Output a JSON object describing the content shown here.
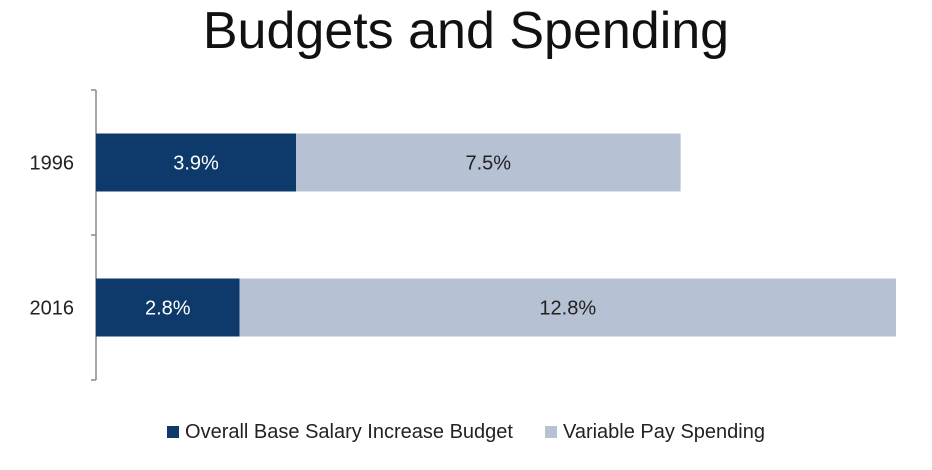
{
  "chart_data": {
    "type": "bar",
    "orientation": "horizontal",
    "stacked": true,
    "title": "Budgets and Spending",
    "categories": [
      "1996",
      "2016"
    ],
    "series": [
      {
        "name": "Overall Base Salary Increase Budget",
        "values": [
          3.9,
          2.8
        ],
        "labels": [
          "3.9%",
          "2.8%"
        ],
        "color": "#0e3a6b",
        "label_color": "#ffffff"
      },
      {
        "name": "Variable Pay Spending",
        "values": [
          7.5,
          12.8
        ],
        "labels": [
          "7.5%",
          "12.8%"
        ],
        "color": "#b7c1d4",
        "label_color": "#222222"
      }
    ],
    "xlim": [
      0,
      15.6
    ],
    "grid": false,
    "legend": "bottom"
  }
}
